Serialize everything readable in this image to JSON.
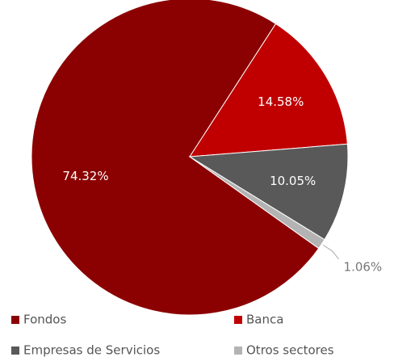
{
  "chart_data": {
    "type": "pie",
    "categories": [
      "Fondos",
      "Banca",
      "Empresas de Servicios",
      "Otros sectores"
    ],
    "values": [
      74.32,
      14.58,
      10.05,
      1.06
    ],
    "value_labels": [
      "74.32%",
      "14.58%",
      "10.05%",
      "1.06%"
    ],
    "colors": [
      "#8b0000",
      "#c00000",
      "#595959",
      "#b3b3b3"
    ],
    "legend": "bottom"
  }
}
